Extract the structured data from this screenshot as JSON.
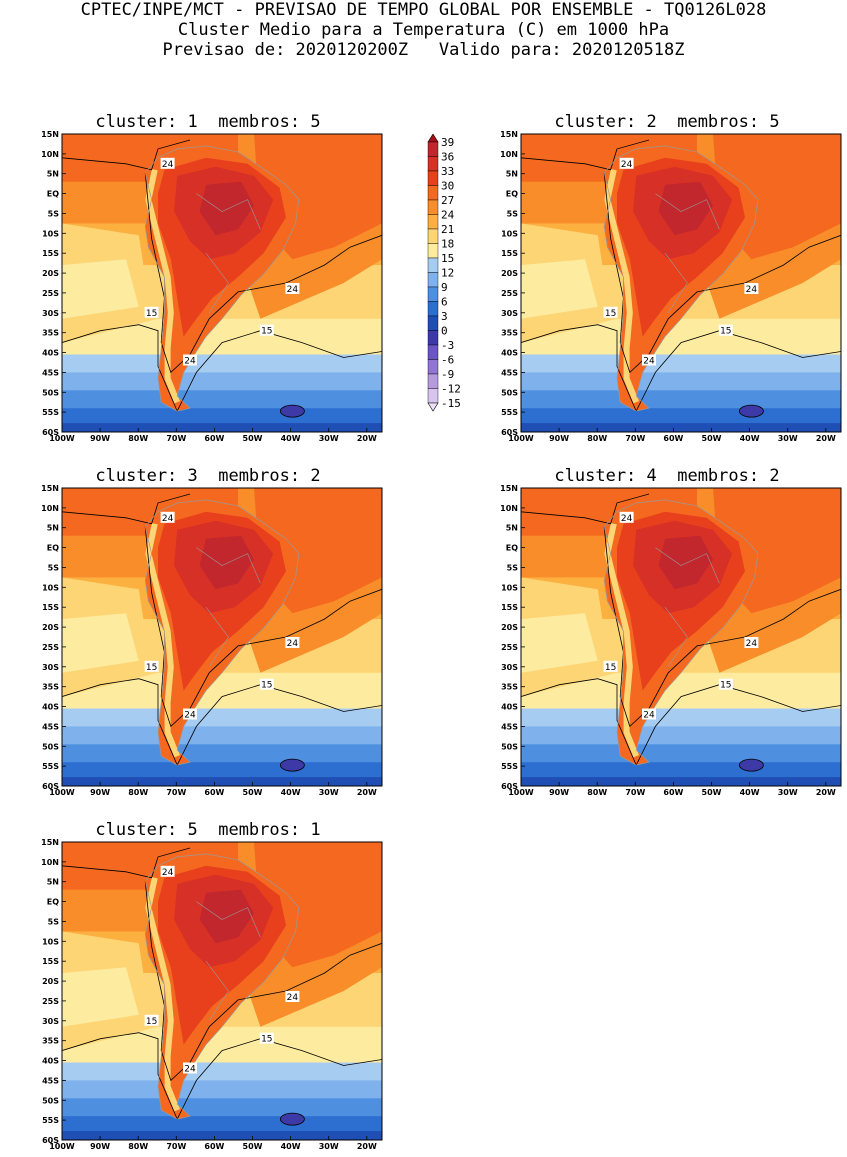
{
  "header": {
    "line1": "CPTEC/INPE/MCT - PREVISAO DE TEMPO GLOBAL POR ENSEMBLE - TQ0126L028",
    "line2": "Cluster Medio para a Temperatura (C) em 1000 hPa",
    "line3": "Previsao de: 2020120200Z   Valido para: 2020120518Z"
  },
  "panels": [
    {
      "title": "cluster: 1  membros: 5"
    },
    {
      "title": "cluster: 2  membros: 5"
    },
    {
      "title": "cluster: 3  membros: 2"
    },
    {
      "title": "cluster: 4  membros: 2"
    },
    {
      "title": "cluster: 5  membros: 1"
    }
  ],
  "lat_ticks": [
    "15N",
    "10N",
    "5N",
    "EQ",
    "5S",
    "10S",
    "15S",
    "20S",
    "25S",
    "30S",
    "35S",
    "40S",
    "45S",
    "50S",
    "55S",
    "60S"
  ],
  "lon_ticks": [
    "100W",
    "90W",
    "80W",
    "70W",
    "60W",
    "50W",
    "40W",
    "30W",
    "20W"
  ],
  "contour_labels": [
    "24",
    "15"
  ],
  "legend": {
    "levels": [
      "39",
      "36",
      "33",
      "30",
      "27",
      "24",
      "21",
      "18",
      "15",
      "12",
      "9",
      "6",
      "3",
      "0",
      "-3",
      "-6",
      "-9",
      "-12",
      "-15"
    ],
    "colors": [
      "#a50f15",
      "#c1272d",
      "#d73027",
      "#e8401c",
      "#f4691f",
      "#f88d2a",
      "#fbb040",
      "#fdd575",
      "#fdeba0",
      "#a6ccf2",
      "#7fb2ec",
      "#4f8fe0",
      "#2d6fd1",
      "#1f4eb4",
      "#3d3aa8",
      "#6a55c2",
      "#9175d3",
      "#b69ae0",
      "#d7c4ef",
      "#ece0f8"
    ]
  }
}
